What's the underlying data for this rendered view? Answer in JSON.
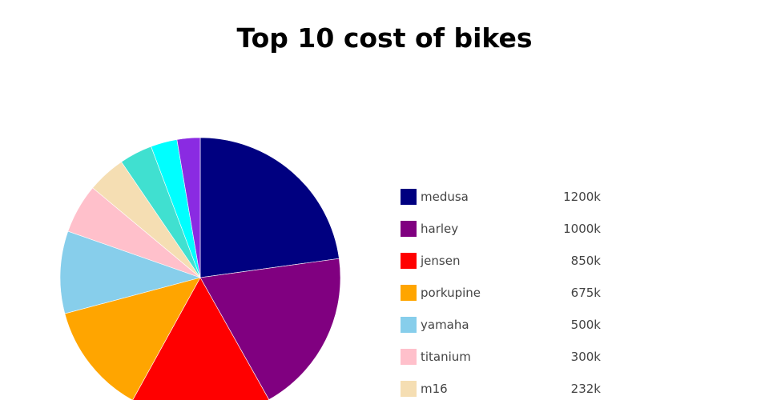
{
  "chart_data": {
    "type": "pie",
    "title": "Top 10 cost of bikes",
    "categories": [
      "medusa",
      "harley",
      "jensen",
      "porkupine",
      "yamaha",
      "titanium",
      "m16",
      "",
      "",
      ""
    ],
    "values": [
      1200,
      1000,
      850,
      675,
      500,
      300,
      232,
      200,
      160,
      140
    ],
    "value_labels": [
      "1200k",
      "1000k",
      "850k",
      "675k",
      "500k",
      "300k",
      "232k",
      "",
      "",
      ""
    ],
    "colors": [
      "#000080",
      "#800080",
      "#ff0000",
      "#ffa500",
      "#87ceeb",
      "#ffc0cb",
      "#f5deb3",
      "#40e0d0",
      "#00ffff",
      "#8a2be2"
    ],
    "start_angle_deg": 0,
    "direction": "clockwise",
    "legend_position": "right"
  }
}
